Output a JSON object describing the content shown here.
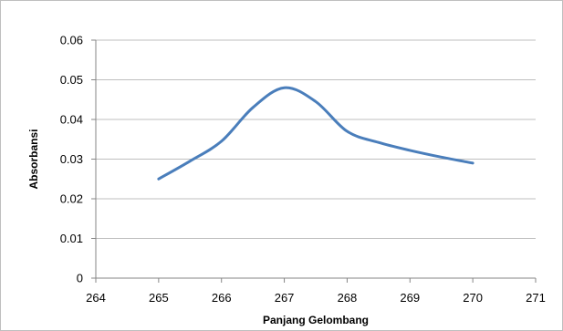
{
  "chart_data": {
    "type": "line",
    "title": "",
    "xlabel": "Panjang Gelombang",
    "ylabel": "Absorbansi",
    "xlim": [
      264,
      271
    ],
    "ylim": [
      0,
      0.06
    ],
    "x_ticks": [
      "264",
      "265",
      "266",
      "267",
      "268",
      "269",
      "270",
      "271"
    ],
    "y_ticks": [
      "0",
      "0.01",
      "0.02",
      "0.03",
      "0.04",
      "0.05",
      "0.06"
    ],
    "grid": "horizontal",
    "legend": "none",
    "line_color": "#4a7ebb",
    "series": [
      {
        "x": [
          265,
          265.5,
          266,
          266.5,
          267,
          267.5,
          268,
          268.5,
          269,
          269.5,
          270
        ],
        "values": [
          0.025,
          0.0295,
          0.0345,
          0.043,
          0.048,
          0.0445,
          0.037,
          0.0342,
          0.0322,
          0.0305,
          0.029
        ]
      }
    ]
  }
}
